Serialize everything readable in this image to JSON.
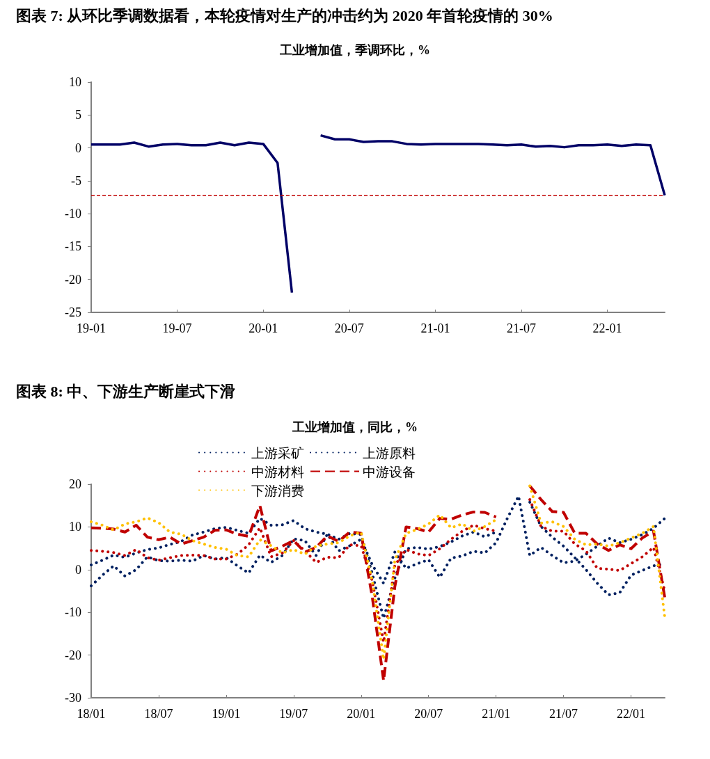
{
  "chart_data": [
    {
      "type": "line",
      "title": "图表 7: 从环比季调数据看，本轮疫情对生产的冲击约为 2020 年首轮疫情的 30%",
      "subtitle": "工业增加值，季调环比，%",
      "categories": [
        "19-01",
        null,
        null,
        null,
        null,
        null,
        "19-07",
        null,
        null,
        null,
        null,
        null,
        "20-01",
        null,
        null,
        null,
        null,
        null,
        "20-07",
        null,
        null,
        null,
        null,
        null,
        "21-01",
        null,
        null,
        null,
        null,
        null,
        "21-07",
        null,
        null,
        null,
        null,
        null,
        "22-01",
        null,
        null,
        null,
        null
      ],
      "series": [
        {
          "color": "#000066",
          "line_style": "solid",
          "values": [
            0.5,
            0.5,
            0.5,
            0.8,
            0.2,
            0.5,
            0.6,
            0.4,
            0.4,
            0.8,
            0.4,
            0.8,
            0.6,
            -2.3,
            -22.0,
            null,
            1.9,
            1.3,
            1.3,
            0.9,
            1.0,
            1.0,
            0.6,
            0.5,
            0.6,
            0.6,
            0.6,
            0.6,
            0.5,
            0.4,
            0.5,
            0.2,
            0.3,
            0.1,
            0.4,
            0.4,
            0.5,
            0.3,
            0.5,
            0.4,
            -7.2
          ]
        }
      ],
      "ylim": [
        -25,
        10
      ],
      "yticks": [
        -25,
        -20,
        -15,
        -10,
        -5,
        0,
        5,
        10
      ],
      "marker": "none",
      "ref_lines": [
        {
          "axis": "y",
          "value": -7.2,
          "color": "#c00000",
          "line_style": "dashed"
        }
      ]
    },
    {
      "type": "line",
      "title": "图表 8: 中、下游生产断崖式下滑",
      "subtitle": "工业增加值，同比，%",
      "categories": [
        "18/01",
        null,
        null,
        null,
        null,
        null,
        "18/07",
        null,
        null,
        null,
        null,
        null,
        "19/01",
        null,
        null,
        null,
        null,
        null,
        "19/07",
        null,
        null,
        null,
        null,
        null,
        "20/01",
        null,
        null,
        null,
        null,
        null,
        "20/07",
        null,
        null,
        null,
        null,
        null,
        "21/01",
        null,
        null,
        null,
        null,
        null,
        "21/07",
        null,
        null,
        null,
        null,
        null,
        "22/01",
        null,
        null,
        null
      ],
      "series": [
        {
          "name": "上游采矿",
          "color": "#002060",
          "line_style": "dotted",
          "values": [
            -3.8,
            -1.3,
            0.9,
            -1.5,
            0,
            3.0,
            2.1,
            2.0,
            2.2,
            2.0,
            3.3,
            2.5,
            2.8,
            0.9,
            -0.8,
            3.4,
            1.7,
            3.3,
            7.2,
            6.8,
            3.3,
            8.3,
            4.4,
            5.6,
            7.1,
            1.1,
            -3.2,
            4.1,
            0.3,
            1.4,
            2.3,
            -1.8,
            2.7,
            3.2,
            4.3,
            3.9,
            6.3,
            12.0,
            17.2,
            3.3,
            5.2,
            3.3,
            1.6,
            2.0,
            3.6,
            5.5,
            7.4,
            6.3,
            7.1,
            8.2,
            9.7,
            12.0
          ]
        },
        {
          "name": "上游原料",
          "color": "#002060",
          "line_style": "dotted",
          "values": [
            1.1,
            2.2,
            3.4,
            2.9,
            3.9,
            4.7,
            5.1,
            5.9,
            6.6,
            8.1,
            8.8,
            9.6,
            9.9,
            9.2,
            8.5,
            12.0,
            10.4,
            10.5,
            11.5,
            9.6,
            8.8,
            8.3,
            7.1,
            8.5,
            8.2,
            -1.0,
            -11.4,
            -2.0,
            4.9,
            5.2,
            4.8,
            5.4,
            6.5,
            7.9,
            8.8,
            7.7,
            8.8,
            null,
            null,
            15.8,
            10.1,
            7.6,
            5.5,
            2.8,
            0,
            -3.2,
            -5.9,
            -5.4,
            -1.3,
            -0.2,
            0.9,
            1.4
          ]
        },
        {
          "name": "中游材料",
          "color": "#c00000",
          "line_style": "dotted",
          "values": [
            4.5,
            4.3,
            4.0,
            3.3,
            4.7,
            2.8,
            2.2,
            2.8,
            3.3,
            3.4,
            3.3,
            2.5,
            2.5,
            3.6,
            5.8,
            9.8,
            3.0,
            3.9,
            6.8,
            4.4,
            1.7,
            2.9,
            2.8,
            5.8,
            5.6,
            -2.7,
            -17,
            1.0,
            4.7,
            3.7,
            3.3,
            4.9,
            7.1,
            9.0,
            10.4,
            9.6,
            9.0,
            null,
            null,
            16.4,
            10.1,
            9.0,
            9.0,
            6.0,
            4.4,
            0.3,
            0.1,
            -0.2,
            1.4,
            3.0,
            5.2,
            -5.0
          ]
        },
        {
          "name": "中游设备",
          "color": "#c00000",
          "line_style": "dashed",
          "values": [
            9.8,
            9.7,
            9.5,
            8.8,
            10.4,
            7.6,
            7.0,
            7.6,
            6.0,
            6.8,
            7.6,
            9.2,
            9.3,
            8.3,
            7.8,
            15.0,
            4.4,
            5.5,
            6.8,
            4.1,
            5.2,
            7.9,
            6.6,
            8.8,
            8.5,
            -6.5,
            -26,
            -4,
            10,
            9.6,
            8.8,
            12,
            11.8,
            12.8,
            13.5,
            13.4,
            12.3,
            null,
            null,
            19.6,
            16.4,
            13.6,
            13.4,
            8.5,
            8.5,
            6.0,
            4.5,
            5.8,
            4.9,
            7.4,
            9.0,
            -6.5
          ]
        },
        {
          "name": "下游消费",
          "color": "#ffc000",
          "line_style": "dotted",
          "values": [
            11.2,
            10.4,
            9.3,
            10.7,
            11.2,
            12.1,
            11.0,
            8.8,
            8.3,
            6.8,
            6.0,
            5.2,
            4.8,
            3.3,
            3.0,
            7.0,
            5.6,
            3.9,
            4.7,
            3.6,
            5.5,
            6.0,
            6.3,
            7.9,
            8.8,
            -2.7,
            -21,
            2.2,
            8.5,
            9.4,
            10.7,
            12.8,
            9.8,
            10.7,
            9.0,
            10.1,
            11.7,
            null,
            null,
            19.6,
            10.9,
            11.2,
            10.1,
            7.1,
            5.8,
            6.0,
            5.5,
            6.3,
            7.4,
            8.5,
            10.1,
            -11.1
          ]
        }
      ],
      "ylim": [
        -30,
        20
      ],
      "yticks": [
        -30,
        -20,
        -10,
        0,
        10,
        20
      ],
      "marker": "none",
      "legend": "top"
    }
  ]
}
